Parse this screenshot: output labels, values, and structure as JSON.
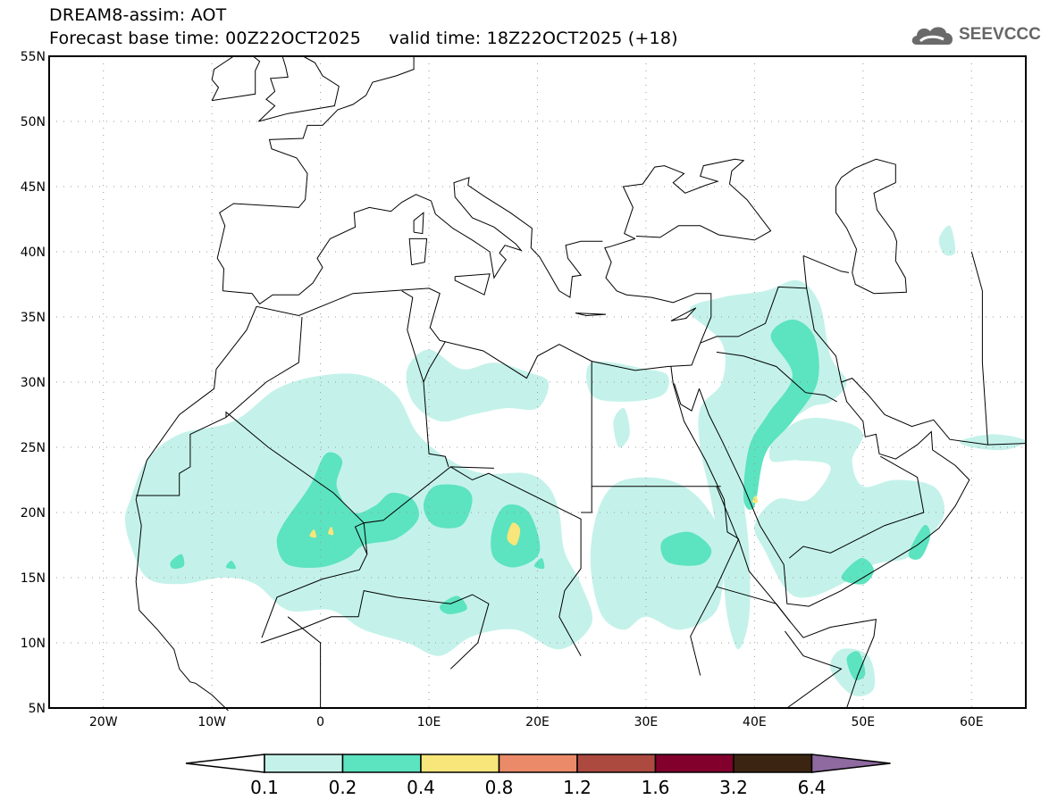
{
  "header": {
    "title": "DREAM8-assim: AOT",
    "base_time_label": "Forecast base time: 00Z22OCT2025",
    "valid_time_label": "valid time: 18Z22OCT2025 (+18)"
  },
  "logo": {
    "text": "SEEVCCC",
    "icon": "cloud-icon"
  },
  "map": {
    "lon_range": [
      -25,
      65
    ],
    "lat_range": [
      5,
      55
    ],
    "lat_ticks": [
      "55N",
      "50N",
      "45N",
      "40N",
      "35N",
      "30N",
      "25N",
      "20N",
      "15N",
      "10N",
      "5N"
    ],
    "lat_values": [
      55,
      50,
      45,
      40,
      35,
      30,
      25,
      20,
      15,
      10,
      5
    ],
    "lon_ticks": [
      "20W",
      "10W",
      "0",
      "10E",
      "20E",
      "30E",
      "40E",
      "50E",
      "60E"
    ],
    "lon_values": [
      -20,
      -10,
      0,
      10,
      20,
      30,
      40,
      50,
      60
    ]
  },
  "colorbar": {
    "levels": [
      "0.1",
      "0.2",
      "0.4",
      "0.8",
      "1.2",
      "1.6",
      "3.2",
      "6.4"
    ],
    "colors": [
      "#ffffff",
      "#c4f2ea",
      "#5ce3bf",
      "#f8e67a",
      "#ea8a68",
      "#ad4a40",
      "#82002c",
      "#3b2412",
      "#8e6aa0"
    ]
  }
}
